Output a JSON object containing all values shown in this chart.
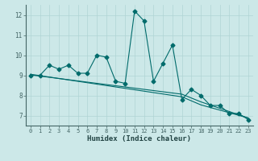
{
  "x": [
    0,
    1,
    2,
    3,
    4,
    5,
    6,
    7,
    8,
    9,
    10,
    11,
    12,
    13,
    14,
    15,
    16,
    17,
    18,
    19,
    20,
    21,
    22,
    23
  ],
  "y_line": [
    9.0,
    9.0,
    9.5,
    9.3,
    9.5,
    9.1,
    9.1,
    10.0,
    9.9,
    8.7,
    8.6,
    12.2,
    11.7,
    8.7,
    9.6,
    10.5,
    7.8,
    8.3,
    8.0,
    7.5,
    7.5,
    7.1,
    7.1,
    6.8
  ],
  "trend1": [
    9.05,
    8.98,
    8.91,
    8.84,
    8.77,
    8.7,
    8.63,
    8.56,
    8.49,
    8.42,
    8.35,
    8.28,
    8.21,
    8.14,
    8.07,
    8.0,
    7.93,
    7.73,
    7.53,
    7.4,
    7.27,
    7.14,
    7.01,
    6.88
  ],
  "trend2": [
    9.02,
    8.96,
    8.9,
    8.84,
    8.78,
    8.72,
    8.66,
    8.6,
    8.54,
    8.48,
    8.42,
    8.36,
    8.3,
    8.24,
    8.18,
    8.12,
    8.06,
    7.87,
    7.68,
    7.52,
    7.36,
    7.2,
    7.04,
    6.88
  ],
  "line_color": "#006b6b",
  "trend_color": "#006b6b",
  "bg_color": "#cce8e8",
  "grid_color": "#b0d4d4",
  "xlabel": "Humidex (Indice chaleur)",
  "ylabel_ticks": [
    7,
    8,
    9,
    10,
    11,
    12
  ],
  "xlim": [
    -0.5,
    23.5
  ],
  "ylim": [
    6.5,
    12.5
  ],
  "xticks": [
    0,
    1,
    2,
    3,
    4,
    5,
    6,
    7,
    8,
    9,
    10,
    11,
    12,
    13,
    14,
    15,
    16,
    17,
    18,
    19,
    20,
    21,
    22,
    23
  ],
  "marker": "D",
  "markersize": 2.5
}
